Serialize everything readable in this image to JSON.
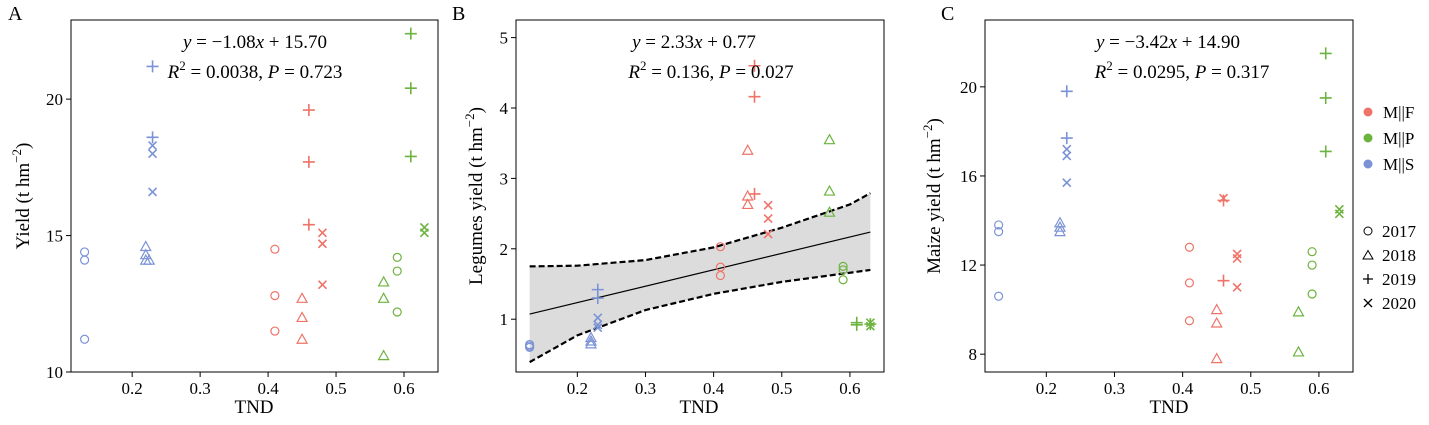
{
  "colors": {
    "MF": "#ee7368",
    "MP": "#6db33f",
    "MS": "#7b93d6",
    "band": "#dcdcdc"
  },
  "legend": {
    "groups": [
      {
        "key": "MF",
        "label": "M||F"
      },
      {
        "key": "MP",
        "label": "M||P"
      },
      {
        "key": "MS",
        "label": "M||S"
      }
    ],
    "years": [
      {
        "year": "2017",
        "marker": "circle"
      },
      {
        "year": "2018",
        "marker": "triangle"
      },
      {
        "year": "2019",
        "marker": "plus"
      },
      {
        "year": "2020",
        "marker": "cross"
      }
    ]
  },
  "chart_data": [
    {
      "id": "A",
      "panel_label": "A",
      "type": "scatter",
      "xlabel": "TND",
      "ylabel_main": "Yield (t hm",
      "ylabel_sup": "−2",
      "ylabel_end": ")",
      "xlim": [
        0.11,
        0.65
      ],
      "ylim": [
        10,
        22.9
      ],
      "xticks": [
        0.2,
        0.3,
        0.4,
        0.5,
        0.6
      ],
      "xtick_labels": [
        "0.2",
        "0.3",
        "0.4",
        "0.5",
        "0.6"
      ],
      "yticks": [
        10,
        15,
        20
      ],
      "ytick_labels": [
        "10",
        "15",
        "20"
      ],
      "equation": {
        "y": "y",
        "eq": " = −1.08",
        "x": "x",
        "rest": " + 15.70"
      },
      "stats": {
        "r": "R",
        "sup": "2",
        "val": " = 0.0038, ",
        "p": "P",
        "pval": " = 0.723"
      },
      "series": [
        {
          "group": "MS",
          "marker": "circle",
          "points": [
            [
              0.13,
              14.4
            ],
            [
              0.13,
              14.1
            ],
            [
              0.13,
              11.2
            ]
          ]
        },
        {
          "group": "MS",
          "marker": "triangle",
          "points": [
            [
              0.22,
              14.6
            ],
            [
              0.22,
              14.3
            ],
            [
              0.22,
              14.1
            ],
            [
              0.225,
              14.1
            ]
          ]
        },
        {
          "group": "MS",
          "marker": "plus",
          "points": [
            [
              0.23,
              21.2
            ],
            [
              0.23,
              18.6
            ]
          ]
        },
        {
          "group": "MS",
          "marker": "cross",
          "points": [
            [
              0.23,
              18.3
            ],
            [
              0.23,
              18.0
            ],
            [
              0.23,
              16.6
            ]
          ]
        },
        {
          "group": "MF",
          "marker": "circle",
          "points": [
            [
              0.41,
              14.5
            ],
            [
              0.41,
              12.8
            ],
            [
              0.41,
              11.5
            ]
          ]
        },
        {
          "group": "MF",
          "marker": "triangle",
          "points": [
            [
              0.45,
              12.7
            ],
            [
              0.45,
              12.0
            ],
            [
              0.45,
              11.2
            ]
          ]
        },
        {
          "group": "MF",
          "marker": "plus",
          "points": [
            [
              0.46,
              19.6
            ],
            [
              0.46,
              17.7
            ],
            [
              0.46,
              15.4
            ]
          ]
        },
        {
          "group": "MF",
          "marker": "cross",
          "points": [
            [
              0.48,
              15.1
            ],
            [
              0.48,
              14.7
            ],
            [
              0.48,
              13.2
            ]
          ]
        },
        {
          "group": "MP",
          "marker": "circle",
          "points": [
            [
              0.59,
              14.2
            ],
            [
              0.59,
              13.7
            ],
            [
              0.59,
              12.2
            ]
          ]
        },
        {
          "group": "MP",
          "marker": "triangle",
          "points": [
            [
              0.57,
              13.3
            ],
            [
              0.57,
              12.7
            ],
            [
              0.57,
              10.6
            ]
          ]
        },
        {
          "group": "MP",
          "marker": "plus",
          "points": [
            [
              0.61,
              22.4
            ],
            [
              0.61,
              20.4
            ],
            [
              0.61,
              17.9
            ]
          ]
        },
        {
          "group": "MP",
          "marker": "cross",
          "points": [
            [
              0.63,
              15.3
            ],
            [
              0.63,
              15.1
            ]
          ]
        }
      ]
    },
    {
      "id": "B",
      "panel_label": "B",
      "type": "scatter",
      "xlabel": "TND",
      "ylabel_main": "Legumes yield (t hm",
      "ylabel_sup": "−2",
      "ylabel_end": ")",
      "xlim": [
        0.11,
        0.65
      ],
      "ylim": [
        0.25,
        5.25
      ],
      "xticks": [
        0.2,
        0.3,
        0.4,
        0.5,
        0.6
      ],
      "xtick_labels": [
        "0.2",
        "0.3",
        "0.4",
        "0.5",
        "0.6"
      ],
      "yticks": [
        1,
        2,
        3,
        4,
        5
      ],
      "ytick_labels": [
        "1",
        "2",
        "3",
        "4",
        "5"
      ],
      "equation": {
        "y": "y",
        "eq": " = 2.33",
        "x": "x",
        "rest": " + 0.77"
      },
      "stats": {
        "r": "R",
        "sup": "2",
        "val": " = 0.136, ",
        "p": "P",
        "pval": " = 0.027"
      },
      "fit": {
        "slope": 2.33,
        "intercept": 0.77,
        "x_range": [
          0.13,
          0.63
        ]
      },
      "ci_lower": [
        [
          0.13,
          0.39
        ],
        [
          0.2,
          0.77
        ],
        [
          0.3,
          1.13
        ],
        [
          0.4,
          1.36
        ],
        [
          0.5,
          1.53
        ],
        [
          0.6,
          1.66
        ],
        [
          0.63,
          1.7
        ]
      ],
      "ci_upper": [
        [
          0.13,
          1.75
        ],
        [
          0.2,
          1.76
        ],
        [
          0.3,
          1.84
        ],
        [
          0.4,
          2.02
        ],
        [
          0.5,
          2.3
        ],
        [
          0.6,
          2.63
        ],
        [
          0.63,
          2.79
        ]
      ],
      "series": [
        {
          "group": "MS",
          "marker": "circle",
          "points": [
            [
              0.13,
              0.64
            ],
            [
              0.13,
              0.62
            ],
            [
              0.13,
              0.6
            ]
          ]
        },
        {
          "group": "MS",
          "marker": "triangle",
          "points": [
            [
              0.22,
              0.74
            ],
            [
              0.22,
              0.69
            ],
            [
              0.22,
              0.65
            ]
          ]
        },
        {
          "group": "MS",
          "marker": "plus",
          "points": [
            [
              0.23,
              1.42
            ],
            [
              0.23,
              1.3
            ]
          ]
        },
        {
          "group": "MS",
          "marker": "cross",
          "points": [
            [
              0.23,
              1.02
            ],
            [
              0.23,
              0.92
            ],
            [
              0.23,
              0.88
            ]
          ]
        },
        {
          "group": "MF",
          "marker": "circle",
          "points": [
            [
              0.41,
              2.03
            ],
            [
              0.41,
              1.74
            ],
            [
              0.41,
              1.62
            ]
          ]
        },
        {
          "group": "MF",
          "marker": "triangle",
          "points": [
            [
              0.45,
              3.4
            ],
            [
              0.45,
              2.75
            ],
            [
              0.45,
              2.63
            ]
          ]
        },
        {
          "group": "MF",
          "marker": "plus",
          "points": [
            [
              0.46,
              4.6
            ],
            [
              0.46,
              4.16
            ],
            [
              0.46,
              2.78
            ]
          ]
        },
        {
          "group": "MF",
          "marker": "cross",
          "points": [
            [
              0.48,
              2.62
            ],
            [
              0.48,
              2.43
            ],
            [
              0.48,
              2.21
            ]
          ]
        },
        {
          "group": "MP",
          "marker": "circle",
          "points": [
            [
              0.59,
              1.75
            ],
            [
              0.59,
              1.7
            ],
            [
              0.59,
              1.56
            ]
          ]
        },
        {
          "group": "MP",
          "marker": "triangle",
          "points": [
            [
              0.57,
              3.55
            ],
            [
              0.57,
              2.82
            ],
            [
              0.57,
              2.52
            ]
          ]
        },
        {
          "group": "MP",
          "marker": "plus",
          "points": [
            [
              0.61,
              0.95
            ],
            [
              0.61,
              0.92
            ],
            [
              0.63,
              0.93
            ]
          ]
        },
        {
          "group": "MP",
          "marker": "cross",
          "points": [
            [
              0.63,
              0.95
            ],
            [
              0.63,
              0.9
            ]
          ]
        }
      ]
    },
    {
      "id": "C",
      "panel_label": "C",
      "type": "scatter",
      "xlabel": "TND",
      "ylabel_main": "Maize yield (t hm",
      "ylabel_sup": "−2",
      "ylabel_end": ")",
      "xlim": [
        0.11,
        0.65
      ],
      "ylim": [
        7.2,
        23
      ],
      "xticks": [
        0.2,
        0.3,
        0.4,
        0.5,
        0.6
      ],
      "xtick_labels": [
        "0.2",
        "0.3",
        "0.4",
        "0.5",
        "0.6"
      ],
      "yticks": [
        8,
        12,
        16,
        20
      ],
      "ytick_labels": [
        "8",
        "12",
        "16",
        "20"
      ],
      "equation": {
        "y": "y",
        "eq": " = −3.42",
        "x": "x",
        "rest": " + 14.90"
      },
      "stats": {
        "r": "R",
        "sup": "2",
        "val": " = 0.0295, ",
        "p": "P",
        "pval": " = 0.317"
      },
      "series": [
        {
          "group": "MS",
          "marker": "circle",
          "points": [
            [
              0.13,
              13.8
            ],
            [
              0.13,
              13.5
            ],
            [
              0.13,
              10.6
            ]
          ]
        },
        {
          "group": "MS",
          "marker": "triangle",
          "points": [
            [
              0.22,
              13.9
            ],
            [
              0.22,
              13.7
            ],
            [
              0.22,
              13.5
            ]
          ]
        },
        {
          "group": "MS",
          "marker": "plus",
          "points": [
            [
              0.23,
              19.8
            ],
            [
              0.23,
              17.7
            ]
          ]
        },
        {
          "group": "MS",
          "marker": "cross",
          "points": [
            [
              0.23,
              17.2
            ],
            [
              0.23,
              16.9
            ],
            [
              0.23,
              15.7
            ]
          ]
        },
        {
          "group": "MF",
          "marker": "circle",
          "points": [
            [
              0.41,
              12.8
            ],
            [
              0.41,
              11.2
            ],
            [
              0.41,
              9.5
            ]
          ]
        },
        {
          "group": "MF",
          "marker": "triangle",
          "points": [
            [
              0.45,
              10.0
            ],
            [
              0.45,
              9.4
            ],
            [
              0.45,
              7.8
            ]
          ]
        },
        {
          "group": "MF",
          "marker": "plus",
          "points": [
            [
              0.46,
              14.9
            ],
            [
              0.46,
              11.3
            ]
          ]
        },
        {
          "group": "MF",
          "marker": "cross",
          "points": [
            [
              0.46,
              15.0
            ],
            [
              0.48,
              12.5
            ],
            [
              0.48,
              12.3
            ],
            [
              0.48,
              11.0
            ]
          ]
        },
        {
          "group": "MP",
          "marker": "circle",
          "points": [
            [
              0.59,
              12.6
            ],
            [
              0.59,
              12.0
            ],
            [
              0.59,
              10.7
            ]
          ]
        },
        {
          "group": "MP",
          "marker": "triangle",
          "points": [
            [
              0.57,
              9.9
            ],
            [
              0.57,
              8.1
            ]
          ]
        },
        {
          "group": "MP",
          "marker": "plus",
          "points": [
            [
              0.61,
              21.5
            ],
            [
              0.61,
              19.5
            ],
            [
              0.61,
              17.1
            ]
          ]
        },
        {
          "group": "MP",
          "marker": "cross",
          "points": [
            [
              0.63,
              14.5
            ],
            [
              0.63,
              14.3
            ]
          ]
        }
      ]
    }
  ]
}
